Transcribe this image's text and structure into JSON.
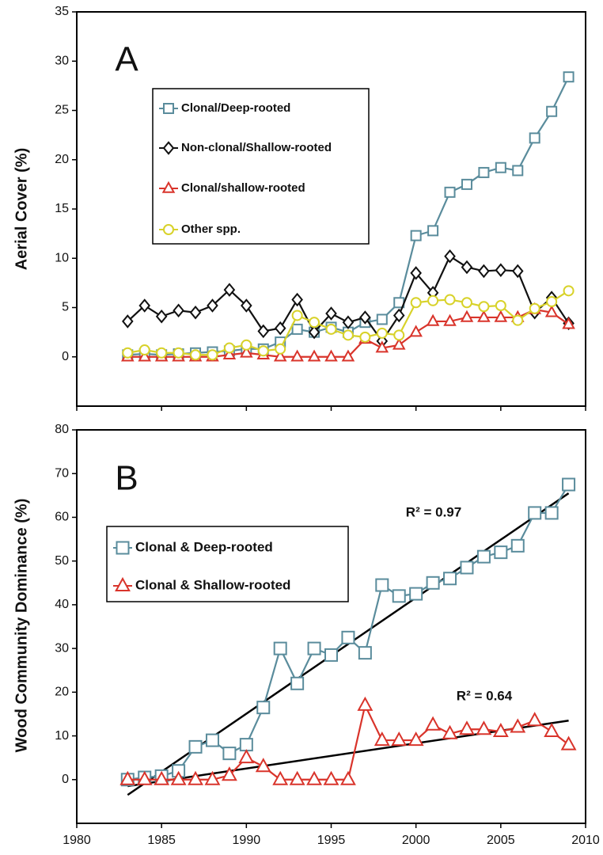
{
  "chart_data": [
    {
      "type": "line",
      "panel_label": "A",
      "ylabel": "Aerial Cover (%)",
      "x": [
        1983,
        1984,
        1985,
        1986,
        1987,
        1988,
        1989,
        1990,
        1991,
        1992,
        1993,
        1994,
        1995,
        1996,
        1997,
        1998,
        1999,
        2000,
        2001,
        2002,
        2003,
        2004,
        2005,
        2006,
        2007,
        2008,
        2009
      ],
      "xlim": [
        1980,
        2010
      ],
      "xticks": [
        1980,
        1985,
        1990,
        1995,
        2000,
        2005,
        2010
      ],
      "ylim": [
        -5,
        35
      ],
      "yticks": [
        0,
        5,
        10,
        15,
        20,
        25,
        30,
        35
      ],
      "series": [
        {
          "name": "Clonal/Deep-rooted",
          "color": "#5a8c9c",
          "marker": "square",
          "values": [
            0.2,
            0.3,
            0.2,
            0.3,
            0.4,
            0.5,
            0.6,
            0.8,
            0.8,
            1.5,
            2.8,
            2.5,
            3.0,
            2.5,
            3.5,
            3.8,
            5.5,
            12.3,
            12.8,
            16.7,
            17.5,
            18.7,
            19.2,
            18.9,
            22.2,
            24.9,
            28.4
          ]
        },
        {
          "name": "Non-clonal/Shallow-rooted",
          "color": "#111111",
          "marker": "diamond",
          "values": [
            3.6,
            5.2,
            4.1,
            4.7,
            4.5,
            5.2,
            6.8,
            5.2,
            2.6,
            2.9,
            5.8,
            2.5,
            4.4,
            3.5,
            4.0,
            1.6,
            4.2,
            8.5,
            6.5,
            10.2,
            9.1,
            8.7,
            8.8,
            8.7,
            4.5,
            6.0,
            3.4
          ]
        },
        {
          "name": "Clonal/shallow-rooted",
          "color": "#d9342b",
          "marker": "triangle",
          "values": [
            0,
            0,
            0,
            0,
            0,
            0,
            0.2,
            0.4,
            0.2,
            0,
            0,
            0,
            0,
            0,
            1.8,
            0.9,
            1.2,
            2.5,
            3.6,
            3.6,
            4.0,
            4.0,
            4.0,
            4.0,
            4.8,
            4.5,
            3.3
          ]
        },
        {
          "name": "Other spp.",
          "color": "#d8d22a",
          "marker": "circle",
          "values": [
            0.4,
            0.7,
            0.4,
            0.4,
            0.2,
            0.2,
            0.9,
            1.2,
            0.6,
            0.8,
            4.2,
            3.5,
            2.8,
            2.2,
            2.0,
            2.4,
            2.2,
            5.5,
            5.7,
            5.8,
            5.5,
            5.1,
            5.2,
            3.7,
            4.9,
            5.6,
            6.7
          ]
        }
      ]
    },
    {
      "type": "line",
      "panel_label": "B",
      "ylabel": "Wood Community Dominance (%)",
      "x": [
        1983,
        1984,
        1985,
        1986,
        1987,
        1988,
        1989,
        1990,
        1991,
        1992,
        1993,
        1994,
        1995,
        1996,
        1997,
        1998,
        1999,
        2000,
        2001,
        2002,
        2003,
        2004,
        2005,
        2006,
        2007,
        2008,
        2009
      ],
      "xlim": [
        1980,
        2010
      ],
      "xticks": [
        1980,
        1985,
        1990,
        1995,
        2000,
        2005,
        2010
      ],
      "ylim": [
        -10,
        80
      ],
      "yticks": [
        0,
        10,
        20,
        30,
        40,
        50,
        60,
        70,
        80
      ],
      "series": [
        {
          "name": "Clonal & Deep-rooted",
          "color": "#5a8c9c",
          "marker": "square",
          "values": [
            0,
            0.5,
            0.8,
            2,
            7.5,
            9,
            6,
            8,
            16.5,
            30,
            22,
            30,
            28.5,
            32.5,
            29,
            44.5,
            42,
            42.5,
            45,
            46,
            48.5,
            51,
            52,
            53.5,
            61,
            61,
            67.5
          ]
        },
        {
          "name": "Clonal & Shallow-rooted",
          "color": "#d9342b",
          "marker": "triangle",
          "values": [
            0,
            0,
            0,
            0,
            0,
            0,
            1,
            5,
            3,
            0,
            0,
            0,
            0,
            0,
            17,
            9,
            9,
            9,
            12.5,
            10.5,
            11.5,
            11.5,
            11,
            12,
            13.5,
            11,
            8
          ]
        }
      ],
      "trendlines": [
        {
          "x": [
            1983,
            2009
          ],
          "y": [
            -3.5,
            65.5
          ],
          "label": "R² = 0.97"
        },
        {
          "x": [
            1983,
            2009
          ],
          "y": [
            -1.5,
            13.5
          ],
          "label": "R² = 0.64"
        }
      ]
    }
  ]
}
